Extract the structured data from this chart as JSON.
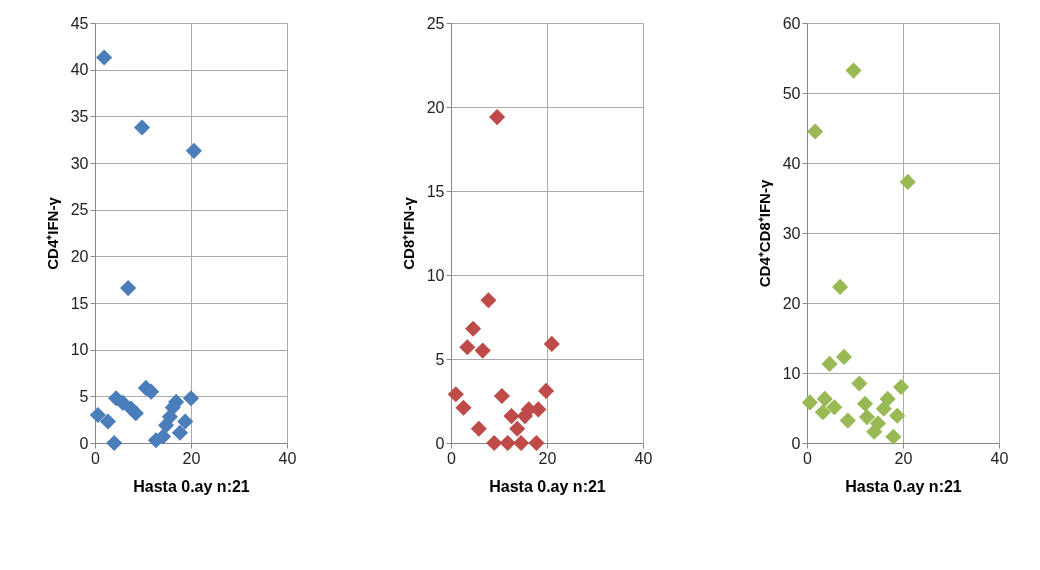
{
  "chart_data": [
    {
      "type": "scatter",
      "xlabel": "Hasta 0.ay n:21",
      "ylabel": "CD4⁺IFN-γ",
      "xlim": [
        0,
        40
      ],
      "xticks": [
        0,
        20,
        40
      ],
      "ylim": [
        0,
        45
      ],
      "yticks": [
        0,
        5,
        10,
        15,
        20,
        25,
        30,
        35,
        40,
        45
      ],
      "grid": true,
      "marker": "diamond",
      "series": [
        {
          "color": "#4a7ebb",
          "x": [
            1.9,
            9.8,
            20.6,
            6.9,
            0.6,
            2.7,
            4,
            4.4,
            5.8,
            7.5,
            8.5,
            10.6,
            11.7,
            12.7,
            14.2,
            14.8,
            15.6,
            16.2,
            16.9,
            17.7,
            18.8,
            20
          ],
          "values": [
            41.3,
            33.8,
            31.3,
            16.6,
            3.0,
            2.3,
            0,
            4.8,
            4.3,
            3.7,
            3.2,
            5.9,
            5.5,
            0.3,
            0.7,
            1.9,
            2.8,
            3.8,
            4.4,
            1.1,
            2.3,
            4.8
          ]
        }
      ]
    },
    {
      "type": "scatter",
      "xlabel": "Hasta 0.ay n:21",
      "ylabel": "CD8⁺IFN-γ",
      "xlim": [
        0,
        40
      ],
      "xticks": [
        0,
        20,
        40
      ],
      "ylim": [
        0,
        25
      ],
      "yticks": [
        0,
        5,
        10,
        15,
        20,
        25
      ],
      "grid": true,
      "marker": "diamond",
      "series": [
        {
          "color": "#be4b48",
          "x": [
            9.6,
            7.8,
            4.6,
            3.4,
            6.6,
            21,
            1,
            2.6,
            10.6,
            19.8,
            5.8,
            9,
            11.8,
            12.6,
            14.6,
            13.8,
            16.2,
            18.2,
            17.8,
            15.4
          ],
          "values": [
            19.4,
            8.5,
            6.8,
            5.7,
            5.5,
            5.9,
            2.9,
            2.1,
            2.8,
            3.1,
            0.85,
            0,
            0,
            1.6,
            0,
            0.85,
            2.0,
            2.0,
            0,
            1.6
          ]
        }
      ]
    },
    {
      "type": "scatter",
      "xlabel": "Hasta 0.ay n:21",
      "ylabel": "CD4⁺CD8⁺IFN-γ",
      "xlim": [
        0,
        40
      ],
      "xticks": [
        0,
        20,
        40
      ],
      "ylim": [
        0,
        60
      ],
      "yticks": [
        0,
        10,
        20,
        30,
        40,
        50,
        60
      ],
      "grid": true,
      "marker": "diamond",
      "series": [
        {
          "color": "#98b954",
          "x": [
            9.7,
            1.7,
            21,
            6.9,
            4.7,
            7.7,
            10.9,
            19.6,
            0.6,
            3.3,
            3.7,
            5.7,
            8.5,
            12.1,
            12.5,
            14,
            16,
            16.8,
            18.8,
            18,
            14.8
          ],
          "values": [
            53.2,
            44.5,
            37.3,
            22.3,
            11.3,
            12.3,
            8.5,
            8.0,
            5.8,
            4.4,
            6.3,
            5.1,
            3.2,
            5.6,
            3.7,
            1.6,
            4.9,
            6.3,
            3.9,
            0.9,
            2.8
          ]
        }
      ]
    }
  ]
}
